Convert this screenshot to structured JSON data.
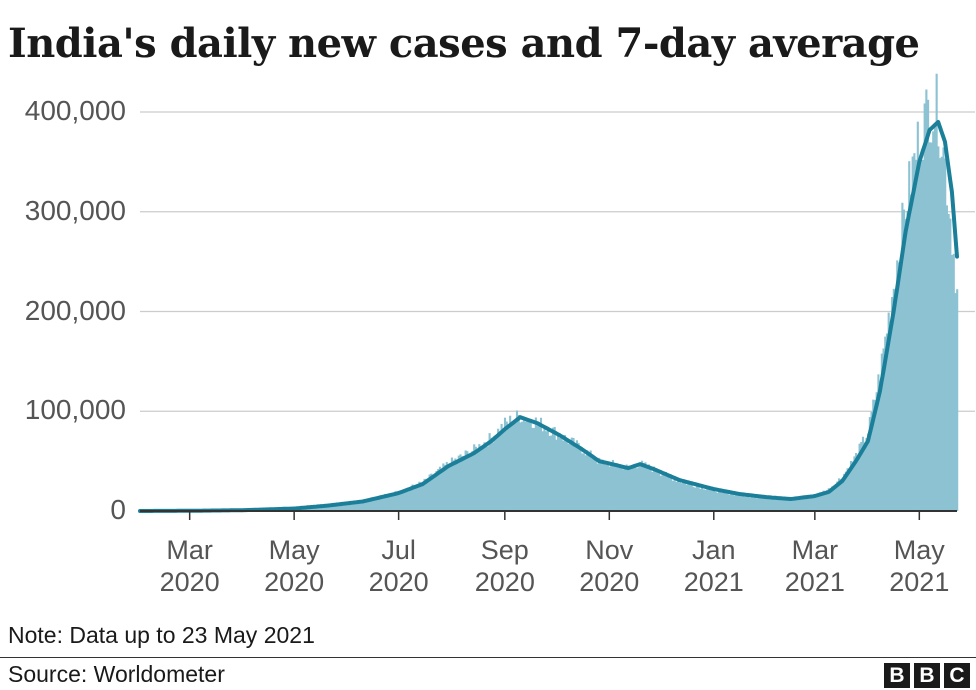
{
  "title": "India's daily new cases and 7-day average",
  "note": "Note: Data up to 23 May 2021",
  "source": "Source: Worldometer",
  "logo": [
    "B",
    "B",
    "C"
  ],
  "colors": {
    "bars": "#8cc2d2",
    "line": "#1b7f99",
    "grid": "#cccccc",
    "axis": "#333333"
  },
  "chart_data": {
    "type": "area",
    "title": "India's daily new cases and 7-day average",
    "xlabel": "",
    "ylabel": "",
    "ylim": [
      0,
      400000
    ],
    "yticks": [
      {
        "value": 0,
        "label": "0"
      },
      {
        "value": 100000,
        "label": "100,000"
      },
      {
        "value": 200000,
        "label": "200,000"
      },
      {
        "value": 300000,
        "label": "300,000"
      },
      {
        "value": 400000,
        "label": "400,000"
      }
    ],
    "xticks": [
      {
        "day": 29,
        "month": "Mar",
        "year": "2020"
      },
      {
        "day": 90,
        "month": "May",
        "year": "2020"
      },
      {
        "day": 151,
        "month": "Jul",
        "year": "2020"
      },
      {
        "day": 213,
        "month": "Sep",
        "year": "2020"
      },
      {
        "day": 274,
        "month": "Nov",
        "year": "2020"
      },
      {
        "day": 335,
        "month": "Jan",
        "year": "2021"
      },
      {
        "day": 394,
        "month": "Mar",
        "year": "2021"
      },
      {
        "day": 455,
        "month": "May",
        "year": "2021"
      }
    ],
    "x_unit": "days since 1 Feb 2020",
    "xlim": [
      0,
      477
    ],
    "series": [
      {
        "name": "7-day average",
        "style": "line",
        "points": [
          [
            0,
            0
          ],
          [
            29,
            200
          ],
          [
            60,
            800
          ],
          [
            90,
            2500
          ],
          [
            110,
            5500
          ],
          [
            130,
            9500
          ],
          [
            151,
            18000
          ],
          [
            165,
            27000
          ],
          [
            180,
            45000
          ],
          [
            195,
            58000
          ],
          [
            205,
            70000
          ],
          [
            213,
            82000
          ],
          [
            222,
            94000
          ],
          [
            232,
            88000
          ],
          [
            245,
            76000
          ],
          [
            258,
            62000
          ],
          [
            268,
            50000
          ],
          [
            278,
            46000
          ],
          [
            285,
            43000
          ],
          [
            292,
            47000
          ],
          [
            300,
            42000
          ],
          [
            315,
            31000
          ],
          [
            335,
            22000
          ],
          [
            350,
            17000
          ],
          [
            365,
            14000
          ],
          [
            380,
            12000
          ],
          [
            394,
            15000
          ],
          [
            402,
            19000
          ],
          [
            410,
            30000
          ],
          [
            418,
            50000
          ],
          [
            425,
            70000
          ],
          [
            432,
            120000
          ],
          [
            440,
            200000
          ],
          [
            447,
            280000
          ],
          [
            455,
            350000
          ],
          [
            461,
            382000
          ],
          [
            466,
            390000
          ],
          [
            470,
            370000
          ],
          [
            474,
            320000
          ],
          [
            477,
            255000
          ]
        ]
      },
      {
        "name": "Daily new cases",
        "style": "bars",
        "points": [
          [
            0,
            0
          ],
          [
            29,
            250
          ],
          [
            60,
            900
          ],
          [
            90,
            2700
          ],
          [
            110,
            6000
          ],
          [
            130,
            10500
          ],
          [
            151,
            19500
          ],
          [
            165,
            29000
          ],
          [
            180,
            48000
          ],
          [
            195,
            62000
          ],
          [
            205,
            74000
          ],
          [
            213,
            88000
          ],
          [
            222,
            97000
          ],
          [
            232,
            90000
          ],
          [
            245,
            77000
          ],
          [
            258,
            63000
          ],
          [
            268,
            50000
          ],
          [
            278,
            47000
          ],
          [
            285,
            44000
          ],
          [
            292,
            48000
          ],
          [
            300,
            42000
          ],
          [
            315,
            30000
          ],
          [
            335,
            21000
          ],
          [
            350,
            16000
          ],
          [
            365,
            13000
          ],
          [
            380,
            12000
          ],
          [
            394,
            16000
          ],
          [
            402,
            22000
          ],
          [
            410,
            35000
          ],
          [
            418,
            56000
          ],
          [
            425,
            80000
          ],
          [
            432,
            140000
          ],
          [
            440,
            230000
          ],
          [
            447,
            310000
          ],
          [
            455,
            380000
          ],
          [
            461,
            410000
          ],
          [
            466,
            405000
          ],
          [
            470,
            350000
          ],
          [
            474,
            280000
          ],
          [
            477,
            222000
          ]
        ]
      }
    ]
  }
}
